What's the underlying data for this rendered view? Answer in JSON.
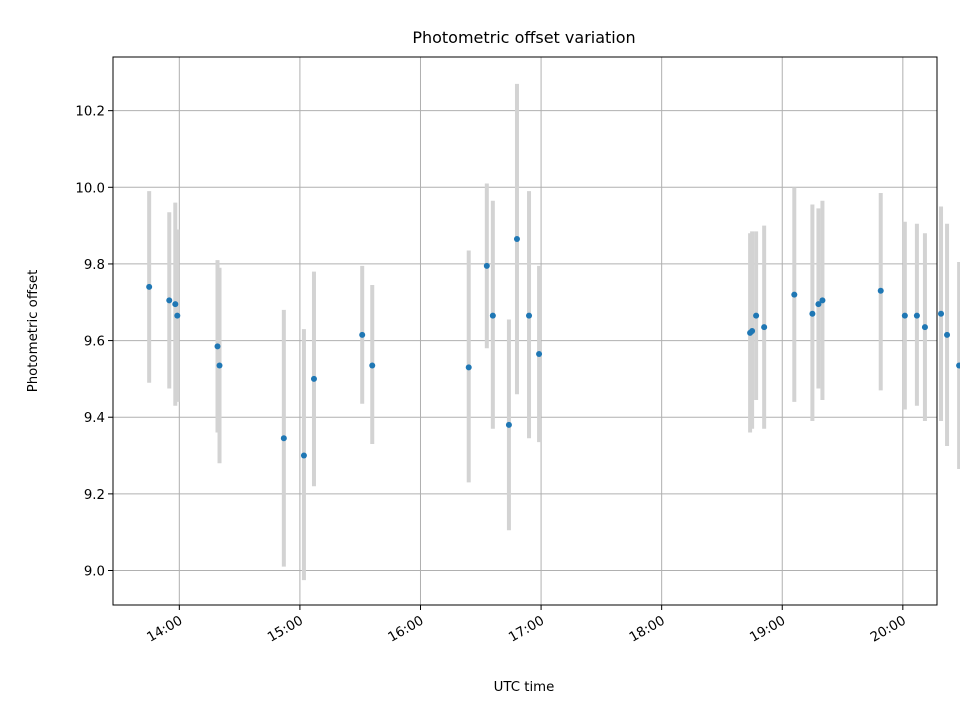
{
  "chart_data": {
    "type": "scatter",
    "title": "Photometric offset variation",
    "xlabel": "UTC time",
    "ylabel": "Photometric offset",
    "x_axis": {
      "type": "time",
      "range": [
        "13:27",
        "20:17"
      ],
      "ticks": [
        "14:00",
        "15:00",
        "16:00",
        "17:00",
        "18:00",
        "19:00",
        "20:00"
      ]
    },
    "y_axis": {
      "range": [
        8.91,
        10.34
      ],
      "ticks": [
        "9.0",
        "9.2",
        "9.4",
        "9.6",
        "9.8",
        "10.0",
        "10.2"
      ]
    },
    "grid": true,
    "colors": {
      "point": "#1f77b4",
      "errorbar": "#d3d3d3",
      "grid": "#b0b0b0"
    },
    "points": [
      {
        "x": "13:45",
        "y": 9.74,
        "ylow": 9.49,
        "yhigh": 9.99
      },
      {
        "x": "13:55",
        "y": 9.705,
        "ylow": 9.475,
        "yhigh": 9.935
      },
      {
        "x": "13:58",
        "y": 9.695,
        "ylow": 9.43,
        "yhigh": 9.96
      },
      {
        "x": "13:59",
        "y": 9.665,
        "ylow": 9.44,
        "yhigh": 9.89
      },
      {
        "x": "14:19",
        "y": 9.585,
        "ylow": 9.36,
        "yhigh": 9.81
      },
      {
        "x": "14:20",
        "y": 9.535,
        "ylow": 9.28,
        "yhigh": 9.79
      },
      {
        "x": "14:52",
        "y": 9.345,
        "ylow": 9.01,
        "yhigh": 9.68
      },
      {
        "x": "15:02",
        "y": 9.3,
        "ylow": 8.975,
        "yhigh": 9.63
      },
      {
        "x": "15:07",
        "y": 9.5,
        "ylow": 9.22,
        "yhigh": 9.78
      },
      {
        "x": "15:31",
        "y": 9.615,
        "ylow": 9.435,
        "yhigh": 9.795
      },
      {
        "x": "15:36",
        "y": 9.535,
        "ylow": 9.33,
        "yhigh": 9.745
      },
      {
        "x": "16:24",
        "y": 9.53,
        "ylow": 9.23,
        "yhigh": 9.835
      },
      {
        "x": "16:33",
        "y": 9.795,
        "ylow": 9.58,
        "yhigh": 10.01
      },
      {
        "x": "16:36",
        "y": 9.665,
        "ylow": 9.37,
        "yhigh": 9.965
      },
      {
        "x": "16:44",
        "y": 9.38,
        "ylow": 9.105,
        "yhigh": 9.655
      },
      {
        "x": "16:48",
        "y": 9.865,
        "ylow": 9.46,
        "yhigh": 10.27
      },
      {
        "x": "16:54",
        "y": 9.665,
        "ylow": 9.345,
        "yhigh": 9.99
      },
      {
        "x": "16:59",
        "y": 9.565,
        "ylow": 9.335,
        "yhigh": 9.795
      },
      {
        "x": "18:44",
        "y": 9.62,
        "ylow": 9.36,
        "yhigh": 9.88
      },
      {
        "x": "18:45",
        "y": 9.625,
        "ylow": 9.37,
        "yhigh": 9.885
      },
      {
        "x": "18:47",
        "y": 9.665,
        "ylow": 9.445,
        "yhigh": 9.885
      },
      {
        "x": "18:51",
        "y": 9.635,
        "ylow": 9.37,
        "yhigh": 9.9
      },
      {
        "x": "19:06",
        "y": 9.72,
        "ylow": 9.44,
        "yhigh": 10.0
      },
      {
        "x": "19:15",
        "y": 9.67,
        "ylow": 9.39,
        "yhigh": 9.955
      },
      {
        "x": "19:18",
        "y": 9.695,
        "ylow": 9.475,
        "yhigh": 9.945
      },
      {
        "x": "19:20",
        "y": 9.705,
        "ylow": 9.445,
        "yhigh": 9.965
      },
      {
        "x": "19:49",
        "y": 9.73,
        "ylow": 9.47,
        "yhigh": 9.985
      },
      {
        "x": "20:01",
        "y": 9.665,
        "ylow": 9.42,
        "yhigh": 9.91
      },
      {
        "x": "20:07",
        "y": 9.665,
        "ylow": 9.43,
        "yhigh": 9.905
      },
      {
        "x": "20:11",
        "y": 9.635,
        "ylow": 9.39,
        "yhigh": 9.88
      },
      {
        "x": "20:19",
        "y": 9.67,
        "ylow": 9.39,
        "yhigh": 9.95
      },
      {
        "x": "20:22",
        "y": 9.615,
        "ylow": 9.325,
        "yhigh": 9.905
      },
      {
        "x": "20:28",
        "y": 9.535,
        "ylow": 9.265,
        "yhigh": 9.805
      }
    ]
  }
}
